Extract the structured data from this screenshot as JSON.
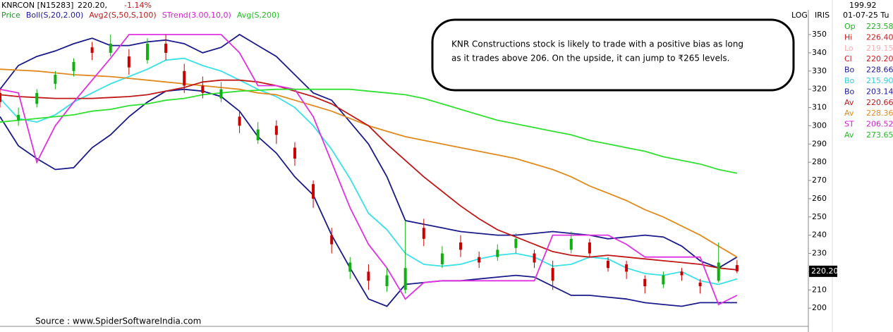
{
  "chart_data": {
    "type": "candlestick",
    "header": {
      "symbol": "KNRCON [N15283]",
      "quote": "220.20,",
      "change": "-1.14%"
    },
    "indicators": [
      {
        "name": "Price",
        "color": "#1a9a1a"
      },
      {
        "name": "Boll(S,20,2.00)",
        "color": "#1a1a9a"
      },
      {
        "name": "Avg2(S,50,S,100)",
        "color": "#c01818"
      },
      {
        "name": "STrend(3.00,10,0)",
        "color": "#d020d0"
      },
      {
        "name": "Avg(S,200)",
        "color": "#22c022"
      }
    ],
    "annotation": [
      "KNR Constructions stock is likely to trade with a positive bias as long",
      "as it trades above 206. On the upside, it can jump to ₹265 levels."
    ],
    "source": "Source : www.SpiderSoftwareIndia.com",
    "scale_label": "LOG",
    "panel_label": "IRIS",
    "cursor_value": "199.92",
    "date": "01-07-25 Tu",
    "price_tag": "220.20",
    "readout": [
      {
        "label": "Op",
        "value": "223.58",
        "color": "#22b022"
      },
      {
        "label": "Hi",
        "value": "226.40",
        "color": "#d01818"
      },
      {
        "label": "Lo",
        "value": "219.15",
        "color": "#f0b0b0"
      },
      {
        "label": "Cl",
        "value": "220.20",
        "color": "#d01818"
      },
      {
        "label": "Bo",
        "value": "228.66",
        "color": "#1a1a9a"
      },
      {
        "label": "Bo",
        "value": "215.90",
        "color": "#30d0e0"
      },
      {
        "label": "Bo",
        "value": "203.14",
        "color": "#1a1a9a"
      },
      {
        "label": "Av",
        "value": "220.66",
        "color": "#c01818"
      },
      {
        "label": "Av",
        "value": "228.36",
        "color": "#e08a1e"
      },
      {
        "label": "ST",
        "value": "206.52",
        "color": "#d020d0"
      },
      {
        "label": "Av",
        "value": "273.65",
        "color": "#22c022"
      }
    ],
    "xlim": [
      0,
      214
    ],
    "ylim": [
      190,
      362
    ],
    "yticks": [
      200,
      210,
      220,
      230,
      240,
      250,
      260,
      270,
      280,
      290,
      300,
      310,
      320,
      330,
      340,
      350
    ],
    "up_color": "#10b010",
    "down_color": "#c80000",
    "x": [
      0,
      5,
      10,
      15,
      20,
      25,
      30,
      35,
      40,
      45,
      50,
      55,
      60,
      65,
      70,
      75,
      80,
      85,
      90,
      95,
      100,
      105,
      110,
      115,
      120,
      125,
      130,
      135,
      140,
      145,
      150,
      155,
      160,
      165,
      170,
      175,
      180,
      185,
      190,
      195,
      200
    ],
    "open": [
      318,
      303,
      312,
      323,
      330,
      343,
      340,
      338,
      336,
      345,
      330,
      322,
      315,
      305,
      292,
      300,
      288,
      268,
      240,
      220,
      220,
      212,
      210,
      244,
      224,
      236,
      228,
      228,
      233,
      230,
      222,
      232,
      236,
      226,
      224,
      216,
      213,
      220,
      214,
      215,
      223.58
    ],
    "high": [
      320,
      310,
      320,
      330,
      337,
      346,
      350,
      342,
      348,
      350,
      334,
      327,
      324,
      308,
      302,
      303,
      291,
      270,
      244,
      228,
      224,
      222,
      248,
      249,
      234,
      240,
      231,
      235,
      241,
      232,
      226,
      242,
      238,
      228,
      226,
      218,
      220,
      222,
      216,
      236,
      226.4
    ],
    "low": [
      310,
      300,
      310,
      320,
      327,
      336,
      338,
      328,
      334,
      336,
      318,
      315,
      313,
      296,
      290,
      290,
      278,
      255,
      230,
      216,
      210,
      209,
      208,
      234,
      222,
      228,
      222,
      226,
      230,
      222,
      210,
      230,
      228,
      220,
      216,
      208,
      211,
      215,
      208,
      214,
      219.15
    ],
    "close": [
      313,
      306,
      318,
      328,
      335,
      340,
      345,
      332,
      345,
      340,
      322,
      318,
      320,
      300,
      298,
      295,
      282,
      260,
      235,
      225,
      215,
      218,
      222,
      238,
      230,
      232,
      225,
      232,
      238,
      225,
      215,
      238,
      230,
      222,
      220,
      212,
      218,
      218,
      212,
      225,
      220.2
    ],
    "lines": [
      {
        "color": "#1a1a8a",
        "values": [
          320,
          333,
          338,
          341,
          345,
          348,
          344,
          344,
          346,
          347,
          345,
          340,
          343,
          350,
          344,
          338,
          328,
          318,
          314,
          302,
          290,
          272,
          248,
          246,
          244,
          242,
          241,
          240,
          240,
          241,
          242,
          241,
          240,
          238,
          239,
          240,
          239,
          234,
          226,
          222,
          228
        ]
      },
      {
        "color": "#1a1a8a",
        "values": [
          305,
          289,
          282,
          276,
          277,
          288,
          295,
          305,
          313,
          319,
          320,
          319,
          316,
          308,
          294,
          285,
          272,
          262,
          240,
          222,
          205,
          201,
          213,
          214,
          215,
          215,
          216,
          217,
          218,
          217,
          212,
          207,
          207,
          206,
          205,
          203,
          202,
          201,
          203,
          203,
          203
        ]
      },
      {
        "color": "#38e0e8",
        "values": [
          315,
          304,
          302,
          306,
          313,
          318,
          323,
          327,
          331,
          336,
          337,
          333,
          330,
          325,
          320,
          316,
          310,
          300,
          287,
          271,
          252,
          243,
          230,
          224,
          223,
          224,
          227,
          229,
          230,
          228,
          223,
          224,
          228,
          227,
          222,
          219,
          218,
          220,
          215,
          213,
          216
        ]
      },
      {
        "color": "#e08a1e",
        "values": [
          331,
          330.5,
          330,
          329,
          328,
          327.5,
          327,
          326,
          325,
          324,
          323,
          322,
          321,
          320,
          318,
          317,
          314,
          311,
          308,
          304,
          300,
          297,
          294,
          292,
          290,
          288,
          286,
          284,
          282,
          279,
          276,
          272,
          267,
          263,
          259,
          254,
          250,
          245,
          240,
          234,
          228
        ]
      },
      {
        "color": "#c01818",
        "values": [
          317,
          316,
          315.5,
          315,
          315,
          315,
          315.5,
          316,
          317,
          319,
          321,
          324,
          325,
          325,
          324,
          322,
          319,
          316,
          312,
          306,
          300,
          290,
          281,
          272,
          264,
          256,
          249,
          243,
          239,
          235,
          231,
          229,
          228,
          229,
          228,
          227,
          226,
          225,
          224,
          222,
          221
        ]
      },
      {
        "color": "#e030e0",
        "values": [
          320,
          318,
          280,
          300,
          313,
          325,
          337,
          350,
          350,
          350,
          350,
          350,
          350,
          340,
          322,
          322,
          320,
          305,
          280,
          255,
          235,
          222,
          205,
          214,
          215,
          215,
          215,
          215,
          215,
          215,
          240,
          240,
          240,
          240,
          235,
          228,
          228,
          228,
          228,
          202,
          207
        ]
      },
      {
        "color": "#30e030",
        "values": [
          302,
          303,
          304,
          305,
          306,
          308,
          309,
          311,
          312,
          314,
          315,
          317,
          318,
          319,
          319.5,
          320,
          320,
          320,
          320,
          320,
          319,
          318,
          317,
          315,
          312,
          309,
          306,
          303,
          301,
          299,
          297,
          295,
          292,
          290,
          288,
          286,
          283,
          281,
          279,
          276,
          274
        ]
      }
    ]
  }
}
